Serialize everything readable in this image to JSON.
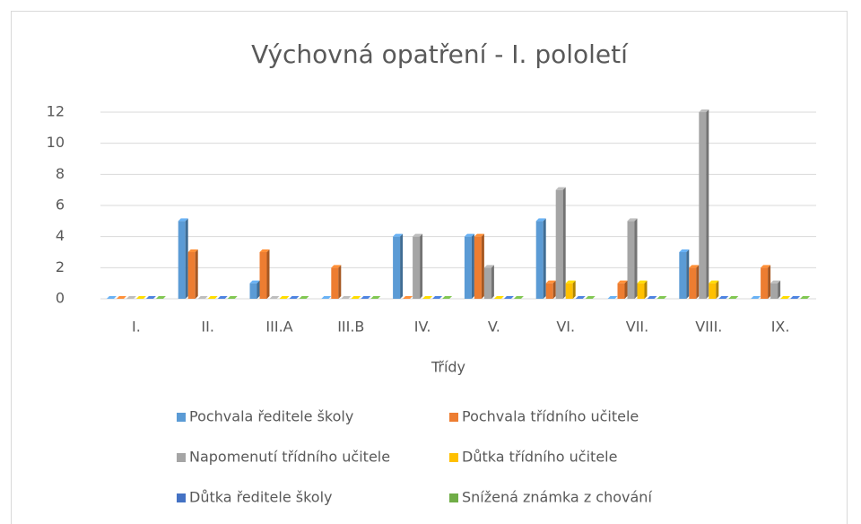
{
  "chart_data": {
    "type": "bar",
    "title": "Výchovná opatření - I. pololetí",
    "x_label": "Třídy",
    "categories": [
      "I.",
      "II.",
      "III.A",
      "III.B",
      "IV.",
      "V.",
      "VI.",
      "VII.",
      "VIII.",
      "IX."
    ],
    "series": [
      {
        "name": "Pochvala ředitele školy",
        "color": "#5b9bd5",
        "values": [
          0,
          5,
          1,
          0,
          4,
          4,
          5,
          0,
          3,
          0
        ]
      },
      {
        "name": "Pochvala třídního učitele",
        "color": "#ed7d31",
        "values": [
          0,
          3,
          3,
          2,
          0,
          4,
          1,
          1,
          2,
          2
        ]
      },
      {
        "name": "Napomenutí třídního učitele",
        "color": "#a5a5a5",
        "values": [
          0,
          0,
          0,
          0,
          4,
          2,
          7,
          5,
          12,
          1
        ]
      },
      {
        "name": "Důtka třídního učitele",
        "color": "#ffc000",
        "values": [
          0,
          0,
          0,
          0,
          0,
          0,
          1,
          1,
          1,
          0
        ]
      },
      {
        "name": "Důtka ředitele školy",
        "color": "#4472c4",
        "values": [
          0,
          0,
          0,
          0,
          0,
          0,
          0,
          0,
          0,
          0
        ]
      },
      {
        "name": "Snížená známka z chování",
        "color": "#70ad47",
        "values": [
          0,
          0,
          0,
          0,
          0,
          0,
          0,
          0,
          0,
          0
        ]
      }
    ],
    "ylim": [
      0,
      12
    ],
    "yticks": [
      0,
      2,
      4,
      6,
      8,
      10,
      12
    ],
    "grid": true,
    "legend": "bottom"
  }
}
